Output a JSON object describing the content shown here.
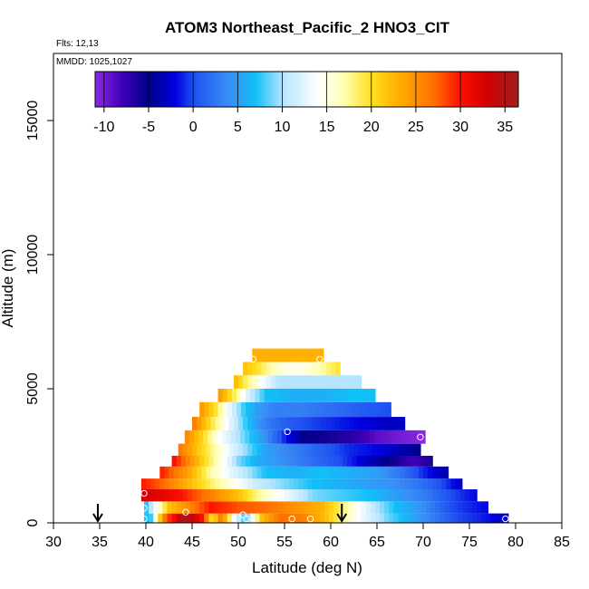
{
  "chart_data": {
    "type": "heatmap",
    "title": "ATOM3 Northeast_Pacific_2 HNO3_CIT",
    "flights_label": "Flts: 12,13",
    "mmdd_label": "MMDD: 1025,1027",
    "xlabel": "Latitude (deg N)",
    "ylabel": "Altitude (m)",
    "xlim": [
      30,
      85
    ],
    "ylim": [
      0,
      17500
    ],
    "x_ticks": [
      "30",
      "35",
      "40",
      "45",
      "50",
      "55",
      "60",
      "65",
      "70",
      "75",
      "80",
      "85"
    ],
    "y_ticks": [
      "0",
      "5000",
      "10000",
      "15000"
    ],
    "colorbar": {
      "range": [
        -11,
        36.5
      ],
      "ticks": [
        "-10",
        "-5",
        "0",
        "5",
        "10",
        "15",
        "20",
        "25",
        "30",
        "35"
      ],
      "stops": [
        {
          "v": -11,
          "color": "#8a2be2"
        },
        {
          "v": -8,
          "color": "#3f00b8"
        },
        {
          "v": -5,
          "color": "#000088"
        },
        {
          "v": -2,
          "color": "#0000e0"
        },
        {
          "v": 0,
          "color": "#1e50f0"
        },
        {
          "v": 4,
          "color": "#3a8ef5"
        },
        {
          "v": 7,
          "color": "#10c0f8"
        },
        {
          "v": 10,
          "color": "#b4e4ff"
        },
        {
          "v": 14,
          "color": "#ffffff"
        },
        {
          "v": 17,
          "color": "#ffffb0"
        },
        {
          "v": 20,
          "color": "#ffe020"
        },
        {
          "v": 23,
          "color": "#ffb000"
        },
        {
          "v": 27,
          "color": "#ff7000"
        },
        {
          "v": 30,
          "color": "#ff1000"
        },
        {
          "v": 33,
          "color": "#d00000"
        },
        {
          "v": 36.5,
          "color": "#a02020"
        }
      ]
    },
    "profile_arrows_lat": [
      34.8,
      61.2
    ],
    "bands": [
      {
        "alt": [
          0,
          350
        ],
        "lat": [
          39.8,
          79.2
        ],
        "values": [
          {
            "lat": 39.8,
            "v": 7
          },
          {
            "lat": 40.5,
            "v": 7
          },
          {
            "lat": 41.2,
            "v": 18
          },
          {
            "lat": 42.2,
            "v": 28
          },
          {
            "lat": 43.2,
            "v": 31
          },
          {
            "lat": 44.2,
            "v": 36
          },
          {
            "lat": 45.2,
            "v": 33
          },
          {
            "lat": 46.2,
            "v": 30
          },
          {
            "lat": 47.2,
            "v": 19
          },
          {
            "lat": 48.2,
            "v": 27
          },
          {
            "lat": 49.5,
            "v": 14
          },
          {
            "lat": 50.8,
            "v": 7
          },
          {
            "lat": 52.5,
            "v": 22
          },
          {
            "lat": 54.5,
            "v": 27
          },
          {
            "lat": 57,
            "v": 26
          },
          {
            "lat": 59.5,
            "v": 22
          },
          {
            "lat": 61.5,
            "v": 17
          },
          {
            "lat": 63.5,
            "v": 13
          },
          {
            "lat": 66,
            "v": 9
          },
          {
            "lat": 68.5,
            "v": 6
          },
          {
            "lat": 71,
            "v": 3
          },
          {
            "lat": 73.5,
            "v": 0
          },
          {
            "lat": 76,
            "v": -1
          },
          {
            "lat": 79.2,
            "v": -3
          }
        ]
      },
      {
        "alt": [
          350,
          800
        ],
        "lat": [
          39.8,
          77
        ],
        "values": [
          {
            "lat": 39.8,
            "v": 6
          },
          {
            "lat": 41,
            "v": 13
          },
          {
            "lat": 42.5,
            "v": 22
          },
          {
            "lat": 44.5,
            "v": 25
          },
          {
            "lat": 47,
            "v": 30
          },
          {
            "lat": 50,
            "v": 28
          },
          {
            "lat": 53,
            "v": 27
          },
          {
            "lat": 56,
            "v": 25
          },
          {
            "lat": 59,
            "v": 23
          },
          {
            "lat": 61,
            "v": 19
          },
          {
            "lat": 63,
            "v": 14
          },
          {
            "lat": 65,
            "v": 10
          },
          {
            "lat": 67,
            "v": 7
          },
          {
            "lat": 70,
            "v": 4
          },
          {
            "lat": 73,
            "v": 0
          },
          {
            "lat": 77,
            "v": -2
          }
        ]
      },
      {
        "alt": [
          800,
          1250
        ],
        "lat": [
          39.5,
          75.8
        ],
        "values": [
          {
            "lat": 39.5,
            "v": 33
          },
          {
            "lat": 43,
            "v": 31
          },
          {
            "lat": 47,
            "v": 26
          },
          {
            "lat": 50,
            "v": 22
          },
          {
            "lat": 53,
            "v": 16
          },
          {
            "lat": 56,
            "v": 12
          },
          {
            "lat": 58,
            "v": 9
          },
          {
            "lat": 61,
            "v": 8
          },
          {
            "lat": 64,
            "v": 7
          },
          {
            "lat": 67,
            "v": 5
          },
          {
            "lat": 70,
            "v": 3
          },
          {
            "lat": 73,
            "v": 0
          },
          {
            "lat": 75.8,
            "v": -2
          }
        ]
      },
      {
        "alt": [
          1250,
          1650
        ],
        "lat": [
          39.5,
          74.2
        ],
        "values": [
          {
            "lat": 39.5,
            "v": 30
          },
          {
            "lat": 42,
            "v": 27
          },
          {
            "lat": 45,
            "v": 22
          },
          {
            "lat": 48,
            "v": 17
          },
          {
            "lat": 50,
            "v": 14
          },
          {
            "lat": 52,
            "v": 11
          },
          {
            "lat": 55,
            "v": 9
          },
          {
            "lat": 58,
            "v": 7
          },
          {
            "lat": 61,
            "v": 6
          },
          {
            "lat": 64,
            "v": 5
          },
          {
            "lat": 67,
            "v": 4
          },
          {
            "lat": 70,
            "v": 2
          },
          {
            "lat": 72,
            "v": 0
          },
          {
            "lat": 74.2,
            "v": -3
          }
        ]
      },
      {
        "alt": [
          1650,
          2100
        ],
        "lat": [
          41.5,
          72.7
        ],
        "values": [
          {
            "lat": 41.5,
            "v": 30
          },
          {
            "lat": 43,
            "v": 27
          },
          {
            "lat": 45,
            "v": 23
          },
          {
            "lat": 47,
            "v": 17
          },
          {
            "lat": 49,
            "v": 13
          },
          {
            "lat": 51,
            "v": 10
          },
          {
            "lat": 53,
            "v": 7
          },
          {
            "lat": 56,
            "v": 6
          },
          {
            "lat": 59,
            "v": 7
          },
          {
            "lat": 62,
            "v": 6
          },
          {
            "lat": 65,
            "v": 5
          },
          {
            "lat": 68,
            "v": 2
          },
          {
            "lat": 70,
            "v": -1
          },
          {
            "lat": 72.7,
            "v": -4
          }
        ]
      },
      {
        "alt": [
          2100,
          2500
        ],
        "lat": [
          42.8,
          71
        ],
        "values": [
          {
            "lat": 42.8,
            "v": 31
          },
          {
            "lat": 44.5,
            "v": 26
          },
          {
            "lat": 46.5,
            "v": 20
          },
          {
            "lat": 48.5,
            "v": 14
          },
          {
            "lat": 50,
            "v": 9
          },
          {
            "lat": 52,
            "v": 6
          },
          {
            "lat": 55,
            "v": 4
          },
          {
            "lat": 58,
            "v": 2
          },
          {
            "lat": 61,
            "v": 0
          },
          {
            "lat": 64,
            "v": -3
          },
          {
            "lat": 67,
            "v": -6
          },
          {
            "lat": 69,
            "v": -8
          },
          {
            "lat": 71,
            "v": -6
          }
        ]
      },
      {
        "alt": [
          2500,
          2950
        ],
        "lat": [
          43.5,
          69.7
        ],
        "values": [
          {
            "lat": 43.5,
            "v": 27
          },
          {
            "lat": 45.5,
            "v": 22
          },
          {
            "lat": 47.5,
            "v": 17
          },
          {
            "lat": 49,
            "v": 13
          },
          {
            "lat": 51,
            "v": 9
          },
          {
            "lat": 53,
            "v": 5
          },
          {
            "lat": 56,
            "v": 3
          },
          {
            "lat": 59,
            "v": 1
          },
          {
            "lat": 62,
            "v": -1
          },
          {
            "lat": 65,
            "v": -2
          },
          {
            "lat": 68,
            "v": -4
          },
          {
            "lat": 69.7,
            "v": -5
          }
        ]
      },
      {
        "alt": [
          2950,
          3450
        ],
        "lat": [
          44.2,
          70.2
        ],
        "values": [
          {
            "lat": 44.2,
            "v": 26
          },
          {
            "lat": 46,
            "v": 21
          },
          {
            "lat": 48,
            "v": 14
          },
          {
            "lat": 50,
            "v": 10
          },
          {
            "lat": 51.5,
            "v": 7
          },
          {
            "lat": 53,
            "v": 4
          },
          {
            "lat": 55,
            "v": -1
          },
          {
            "lat": 57,
            "v": -5
          },
          {
            "lat": 60,
            "v": -6
          },
          {
            "lat": 62.5,
            "v": -7
          },
          {
            "lat": 65,
            "v": -9
          },
          {
            "lat": 67.5,
            "v": -10
          },
          {
            "lat": 70.2,
            "v": -11
          }
        ]
      },
      {
        "alt": [
          3450,
          3950
        ],
        "lat": [
          45,
          68
        ],
        "values": [
          {
            "lat": 45,
            "v": 27
          },
          {
            "lat": 47,
            "v": 20
          },
          {
            "lat": 49,
            "v": 13
          },
          {
            "lat": 51,
            "v": 7
          },
          {
            "lat": 53,
            "v": 3
          },
          {
            "lat": 55,
            "v": 1
          },
          {
            "lat": 57,
            "v": 0
          },
          {
            "lat": 60,
            "v": -1
          },
          {
            "lat": 63,
            "v": -2
          },
          {
            "lat": 66,
            "v": -3
          },
          {
            "lat": 68,
            "v": -3
          }
        ]
      },
      {
        "alt": [
          3950,
          4500
        ],
        "lat": [
          45.8,
          66.5
        ],
        "values": [
          {
            "lat": 45.8,
            "v": 25
          },
          {
            "lat": 47.5,
            "v": 20
          },
          {
            "lat": 49,
            "v": 13
          },
          {
            "lat": 50.5,
            "v": 8
          },
          {
            "lat": 52,
            "v": 5
          },
          {
            "lat": 54,
            "v": 3
          },
          {
            "lat": 57,
            "v": 3
          },
          {
            "lat": 60,
            "v": 2
          },
          {
            "lat": 63,
            "v": 1
          },
          {
            "lat": 66.5,
            "v": 0
          }
        ]
      },
      {
        "alt": [
          4500,
          5000
        ],
        "lat": [
          47.8,
          64.8
        ],
        "values": [
          {
            "lat": 47.8,
            "v": 25
          },
          {
            "lat": 49.5,
            "v": 19
          },
          {
            "lat": 51,
            "v": 12
          },
          {
            "lat": 53,
            "v": 7
          },
          {
            "lat": 56,
            "v": 6
          },
          {
            "lat": 59,
            "v": 6
          },
          {
            "lat": 62,
            "v": 7
          },
          {
            "lat": 64.8,
            "v": 7
          }
        ]
      },
      {
        "alt": [
          5000,
          5500
        ],
        "lat": [
          49.5,
          63.3
        ],
        "values": [
          {
            "lat": 49.5,
            "v": 23
          },
          {
            "lat": 51,
            "v": 18
          },
          {
            "lat": 52.5,
            "v": 14
          },
          {
            "lat": 54.5,
            "v": 10
          },
          {
            "lat": 57,
            "v": 10
          },
          {
            "lat": 60,
            "v": 10
          },
          {
            "lat": 63.3,
            "v": 10
          }
        ]
      },
      {
        "alt": [
          5500,
          6000
        ],
        "lat": [
          50.5,
          61
        ],
        "values": [
          {
            "lat": 50.5,
            "v": 22
          },
          {
            "lat": 52,
            "v": 20
          },
          {
            "lat": 53.5,
            "v": 17
          },
          {
            "lat": 55,
            "v": 15
          },
          {
            "lat": 57,
            "v": 15
          },
          {
            "lat": 59,
            "v": 17
          },
          {
            "lat": 61,
            "v": 20
          }
        ]
      },
      {
        "alt": [
          6000,
          6500
        ],
        "lat": [
          51.5,
          59.2
        ],
        "values": [
          {
            "lat": 51.5,
            "v": 23
          },
          {
            "lat": 54,
            "v": 23
          },
          {
            "lat": 56,
            "v": 23
          },
          {
            "lat": 59.2,
            "v": 23
          }
        ]
      }
    ],
    "obs_points": [
      {
        "lat": 39.8,
        "alt": 1100
      },
      {
        "lat": 39.8,
        "alt": 550
      },
      {
        "lat": 39.8,
        "alt": 150
      },
      {
        "lat": 44.3,
        "alt": 400
      },
      {
        "lat": 50.5,
        "alt": 300
      },
      {
        "lat": 50.9,
        "alt": 150
      },
      {
        "lat": 55.8,
        "alt": 150
      },
      {
        "lat": 57.8,
        "alt": 150
      },
      {
        "lat": 55.3,
        "alt": 3400
      },
      {
        "lat": 69.7,
        "alt": 3200
      },
      {
        "lat": 51.6,
        "alt": 6100
      },
      {
        "lat": 58.8,
        "alt": 6100
      },
      {
        "lat": 78.9,
        "alt": 150
      }
    ]
  }
}
